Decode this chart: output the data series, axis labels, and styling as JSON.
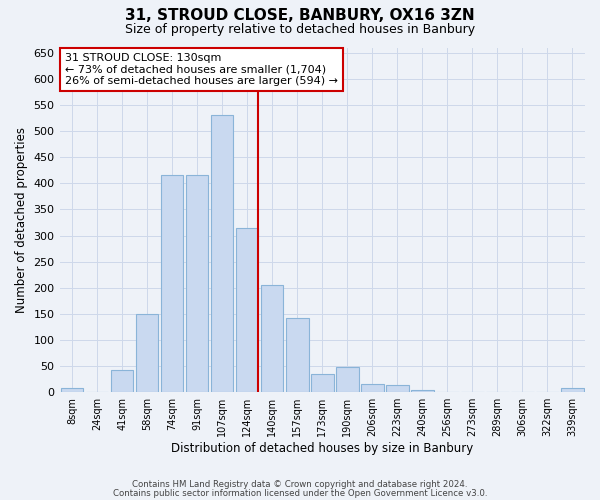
{
  "title": "31, STROUD CLOSE, BANBURY, OX16 3ZN",
  "subtitle": "Size of property relative to detached houses in Banbury",
  "xlabel": "Distribution of detached houses by size in Banbury",
  "ylabel": "Number of detached properties",
  "bin_labels": [
    "8sqm",
    "24sqm",
    "41sqm",
    "58sqm",
    "74sqm",
    "91sqm",
    "107sqm",
    "124sqm",
    "140sqm",
    "157sqm",
    "173sqm",
    "190sqm",
    "206sqm",
    "223sqm",
    "240sqm",
    "256sqm",
    "273sqm",
    "289sqm",
    "306sqm",
    "322sqm",
    "339sqm"
  ],
  "bar_values": [
    8,
    0,
    43,
    150,
    415,
    415,
    530,
    315,
    205,
    143,
    35,
    48,
    15,
    14,
    5,
    0,
    0,
    0,
    0,
    0,
    8
  ],
  "bar_color": "#c9d9f0",
  "bar_edge_color": "#8ab4d8",
  "vline_color": "#cc0000",
  "annotation_title": "31 STROUD CLOSE: 130sqm",
  "annotation_line1": "← 73% of detached houses are smaller (1,704)",
  "annotation_line2": "26% of semi-detached houses are larger (594) →",
  "annotation_box_edge": "#cc0000",
  "footer1": "Contains HM Land Registry data © Crown copyright and database right 2024.",
  "footer2": "Contains public sector information licensed under the Open Government Licence v3.0.",
  "ylim": [
    0,
    660
  ],
  "yticks": [
    0,
    50,
    100,
    150,
    200,
    250,
    300,
    350,
    400,
    450,
    500,
    550,
    600,
    650
  ],
  "grid_color": "#cdd8ea",
  "bg_color": "#eef2f8"
}
